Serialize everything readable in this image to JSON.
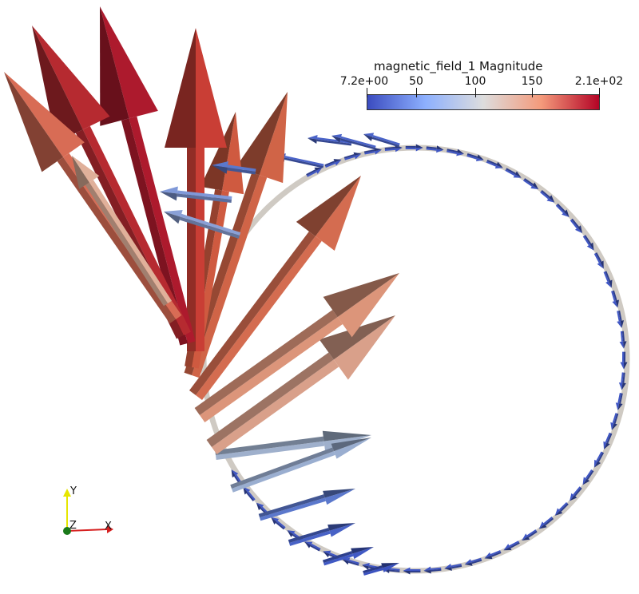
{
  "legend": {
    "title": "magnetic_field_1 Magnitude",
    "min_label": "7.2e+00",
    "max_label": "2.1e+02",
    "ticks": [
      "50",
      "100",
      "150"
    ],
    "colormap": [
      "#3b4cc0",
      "#8db0fe",
      "#dddddd",
      "#f49a7b",
      "#b40426"
    ]
  },
  "axes_widget": {
    "x_label": "X",
    "y_label": "Y",
    "z_label": "Z",
    "x_color": "#d62020",
    "y_color": "#e6e600",
    "z_color": "#1a7a1a"
  },
  "ring_color": "#cfcac3"
}
